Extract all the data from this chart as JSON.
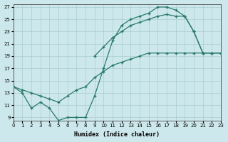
{
  "xlabel": "Humidex (Indice chaleur)",
  "bg_color": "#cde8ec",
  "grid_color": "#aacccc",
  "line_color": "#2a7a6a",
  "xlim": [
    0,
    23
  ],
  "ylim": [
    8.5,
    27.5
  ],
  "xticks": [
    0,
    1,
    2,
    3,
    4,
    5,
    6,
    7,
    8,
    9,
    10,
    11,
    12,
    13,
    14,
    15,
    16,
    17,
    18,
    19,
    20,
    21,
    22,
    23
  ],
  "yticks": [
    9,
    11,
    13,
    15,
    17,
    19,
    21,
    23,
    25,
    27
  ],
  "line1_x": [
    0,
    1,
    2,
    3,
    4,
    5,
    6,
    7,
    8,
    9,
    10,
    11,
    12,
    13,
    14,
    15,
    16,
    17,
    18,
    19,
    20,
    21,
    22,
    23
  ],
  "line1_y": [
    14,
    13,
    10.5,
    11.5,
    10.5,
    8.5,
    9,
    9,
    9,
    12.5,
    17,
    21.5,
    24,
    25,
    25.5,
    26,
    27,
    27,
    26.5,
    25.5,
    23,
    19.5,
    19.5,
    19.5
  ],
  "line2_x": [
    9,
    10,
    11,
    12,
    13,
    14,
    15,
    16,
    17,
    18,
    19,
    20,
    21,
    22,
    23
  ],
  "line2_y": [
    19,
    20.5,
    22,
    23,
    24,
    24.5,
    25,
    25.5,
    25.8,
    25.5,
    25.5,
    23,
    19.5,
    19.5,
    19.5
  ],
  "line3_x": [
    0,
    1,
    2,
    3,
    4,
    5,
    6,
    7,
    8,
    9,
    10,
    11,
    12,
    13,
    14,
    15,
    16,
    17,
    18,
    19,
    20,
    21,
    22,
    23
  ],
  "line3_y": [
    14,
    13.5,
    13.0,
    12.5,
    12.0,
    11.5,
    12.5,
    13.5,
    14.0,
    15.5,
    16.5,
    17.5,
    18.0,
    18.5,
    19.0,
    19.5,
    19.5,
    19.5,
    19.5,
    19.5,
    19.5,
    19.5,
    19.5,
    19.5
  ]
}
